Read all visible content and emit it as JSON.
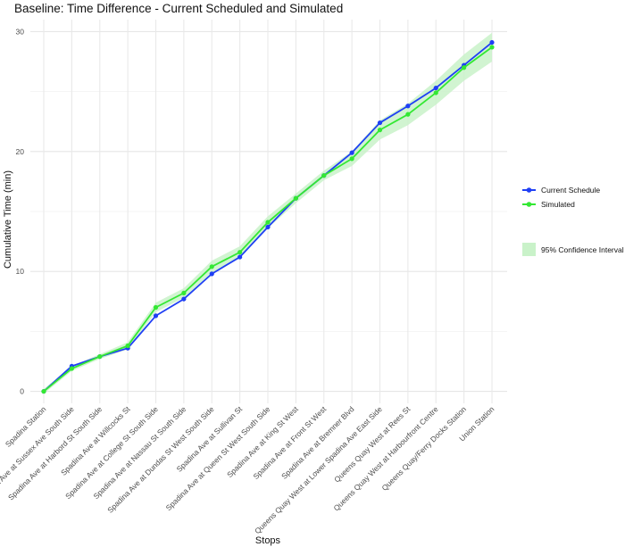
{
  "chart_data": {
    "type": "line",
    "title": "Baseline: Time Difference - Current Scheduled and Simulated",
    "xlabel": "Stops",
    "ylabel": "Cumulative Time (min)",
    "ylim": [
      -1,
      31
    ],
    "yticks": [
      0,
      10,
      20,
      30
    ],
    "grid": true,
    "legend_position": "right",
    "categories": [
      "Spadina Station",
      "Spadina Ave at Sussex Ave South Side",
      "Spadina Ave at Harbord St South Side",
      "Spadina Ave at Willcocks St",
      "Spadina Ave at College St South Side",
      "Spadina Ave at Nassau St South Side",
      "Spadina Ave at Dundas St West South Side",
      "Spadina Ave at Sullivan St",
      "Spadina Ave at Queen St West South Side",
      "Spadina Ave at King St West",
      "Spadina Ave at Front St West",
      "Spadina Ave at Bremner Blvd",
      "Queens Quay West at Lower Spadina Ave East Side",
      "Queens Quay West at Rees St",
      "Queens Quay West at Harbourfront Centre",
      "Queens Quay/Ferry Docks Station",
      "Union Station"
    ],
    "series": [
      {
        "name": "Current Schedule",
        "color": "#1f3ff5",
        "values": [
          0,
          2.1,
          2.9,
          3.6,
          6.3,
          7.7,
          9.8,
          11.2,
          13.7,
          16.1,
          18.0,
          19.9,
          22.4,
          23.8,
          25.3,
          27.2,
          29.1
        ]
      },
      {
        "name": "Simulated",
        "color": "#33e833",
        "values": [
          0,
          1.9,
          2.9,
          3.8,
          7.0,
          8.2,
          10.4,
          11.6,
          14.1,
          16.1,
          18.0,
          19.4,
          21.8,
          23.1,
          24.9,
          27.0,
          28.7
        ]
      }
    ],
    "confidence_band": {
      "name": "95% Confidence Interval",
      "color": "#c9f2c9",
      "lower": [
        -0.2,
        1.7,
        2.7,
        3.5,
        6.6,
        7.8,
        9.9,
        11.1,
        13.6,
        15.7,
        17.6,
        18.8,
        21.0,
        22.2,
        23.9,
        25.9,
        27.5
      ],
      "upper": [
        0.2,
        2.1,
        3.1,
        4.1,
        7.4,
        8.6,
        10.9,
        12.1,
        14.6,
        16.5,
        18.4,
        20.0,
        22.6,
        24.0,
        25.9,
        28.1,
        29.9
      ]
    }
  }
}
